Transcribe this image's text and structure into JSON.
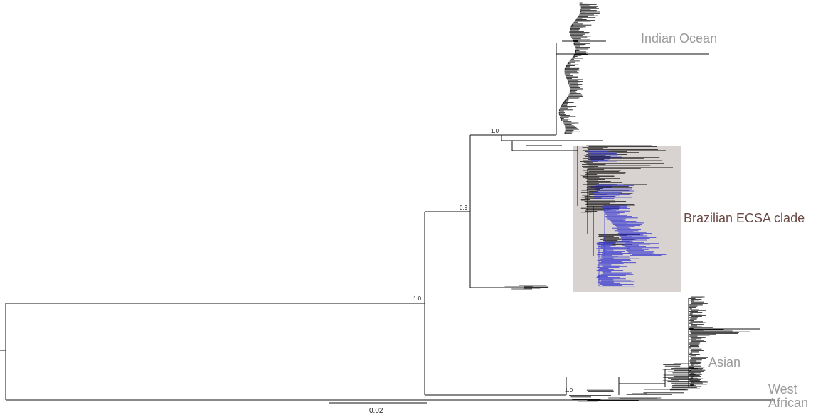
{
  "clades": {
    "indian_ocean": "Indian Ocean",
    "brazilian_ecsa": "Brazilian ECSA  clade",
    "asian": "Asian",
    "west_african_line1": "West",
    "west_african_line2": "African"
  },
  "supports": {
    "root_node": "1.0",
    "ecsa_io_node": "0.9",
    "indian_ocean_node": "1.0",
    "west_african_node": "1.0"
  },
  "scale_bar": {
    "label": "0.02"
  },
  "colors": {
    "branch": "#111111",
    "brazil_branch": "#3a3ad0",
    "highlight_box": "#d8d2d0",
    "label_gray": "#9a9a9a",
    "label_brown": "#6b4a44"
  }
}
